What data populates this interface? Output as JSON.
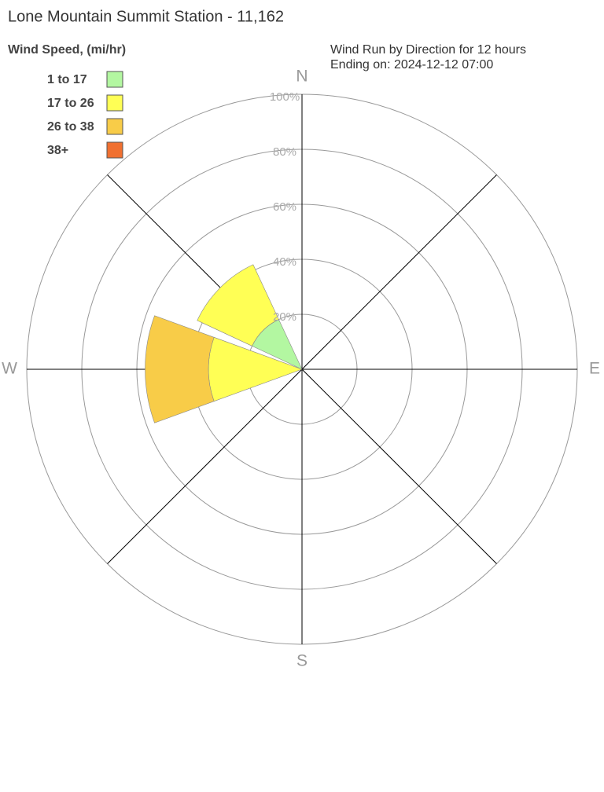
{
  "chart_data": {
    "type": "windrose",
    "title": "Lone Mountain Summit Station - 11,162",
    "legend_title": "Wind Speed, (mi/hr)",
    "subtitle": [
      "Wind Run by Direction for 12 hours",
      "Ending on: 2024-12-12 07:00"
    ],
    "categories": [
      "N",
      null,
      "E",
      null,
      "S",
      null,
      "W",
      null
    ],
    "series": [
      {
        "name": "1 to 17",
        "color": "#b3f7a1",
        "values": [
          0,
          0,
          0,
          0,
          0,
          0,
          0,
          20
        ]
      },
      {
        "name": "17 to 26",
        "color": "#ffff55",
        "values": [
          0,
          0,
          0,
          0,
          0,
          0,
          34,
          22
        ]
      },
      {
        "name": "26 to 38",
        "color": "#f8cc48",
        "values": [
          0,
          0,
          0,
          0,
          0,
          0,
          23,
          0
        ]
      },
      {
        "name": "38+",
        "color": "#f07030",
        "values": [
          0,
          0,
          0,
          0,
          0,
          0,
          0,
          0
        ]
      }
    ],
    "rlim": [
      0,
      100
    ],
    "rticks": [
      {
        "value": 20,
        "label": "20%"
      },
      {
        "value": 40,
        "label": "40%"
      },
      {
        "value": 60,
        "label": "60%"
      },
      {
        "value": 80,
        "label": "80%"
      },
      {
        "value": 100,
        "label": "100%"
      }
    ]
  }
}
